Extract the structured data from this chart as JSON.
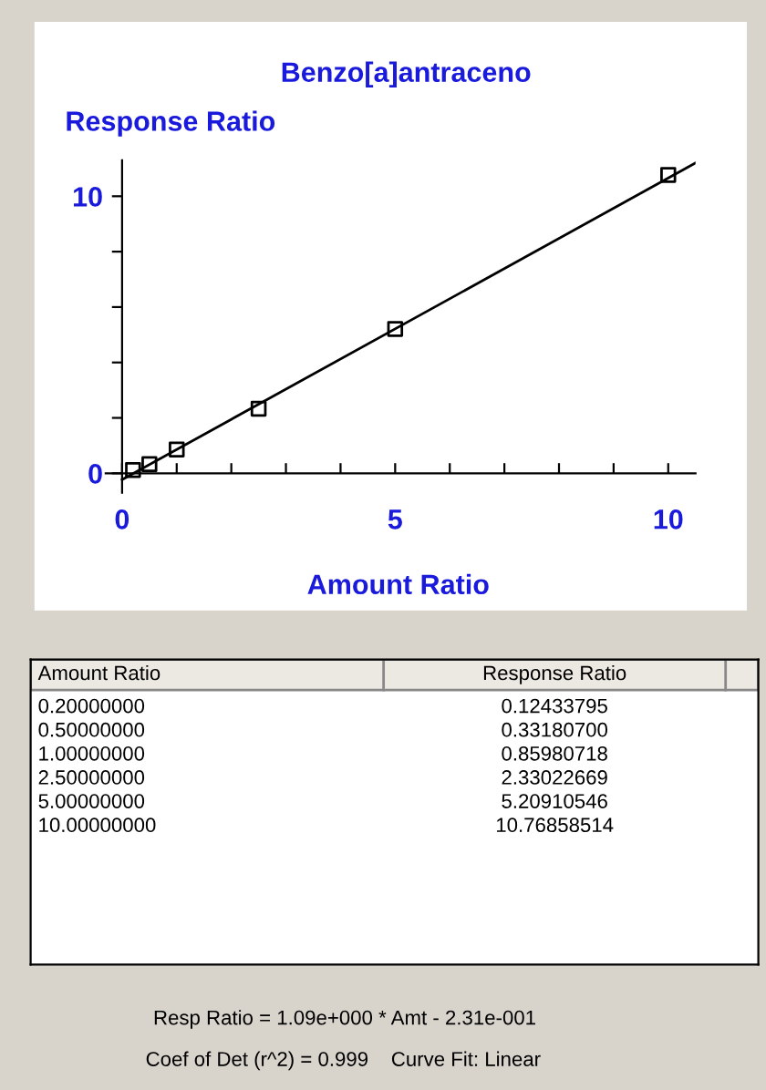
{
  "chart_data": [
    {
      "type": "scatter",
      "title": "Benzo[a]antraceno",
      "xlabel": "Amount Ratio",
      "ylabel": "Response Ratio",
      "x": [
        0.2,
        0.5,
        1.0,
        2.5,
        5.0,
        10.0
      ],
      "series": [
        {
          "color": "#000000",
          "values": [
            0.12,
            0.33,
            0.86,
            2.33,
            5.21,
            10.77
          ],
          "marker": "square"
        },
        {
          "type": "line",
          "color": "#000000",
          "x": [
            0,
            10.5
          ],
          "values": [
            -0.23,
            11.2
          ],
          "marker": "none",
          "line_style": "solid"
        }
      ],
      "xlim": [
        -0.3,
        10.5
      ],
      "ylim": [
        -0.7,
        11.3
      ],
      "xticks": [
        0,
        {
          "value": 1,
          "label": null
        },
        {
          "value": 2,
          "label": null
        },
        {
          "value": 3,
          "label": null
        },
        {
          "value": 4,
          "label": null
        },
        5,
        {
          "value": 6,
          "label": null
        },
        {
          "value": 7,
          "label": null
        },
        {
          "value": 8,
          "label": null
        },
        {
          "value": 9,
          "label": null
        },
        10
      ],
      "yticks": [
        0,
        {
          "value": 2,
          "label": null
        },
        {
          "value": 4,
          "label": null
        },
        {
          "value": 6,
          "label": null
        },
        {
          "value": 8,
          "label": null
        },
        10
      ],
      "grid": false,
      "legend": false,
      "annotations": [
        "Resp Ratio = 1.09e+000 * Amt - 2.31e-001",
        "Coef of Det (r^2) = 0.999    Curve Fit: Linear"
      ]
    },
    {
      "type": "other",
      "annotations": [
        "Amount Ratio",
        "Response Ratio",
        "0.20000000",
        "0.12433795",
        "0.50000000",
        "0.33180700",
        "1.00000000",
        "0.85980718",
        "2.50000000",
        "2.33022669",
        "5.00000000",
        "5.20910546",
        "10.00000000",
        "10.76858514"
      ]
    }
  ]
}
